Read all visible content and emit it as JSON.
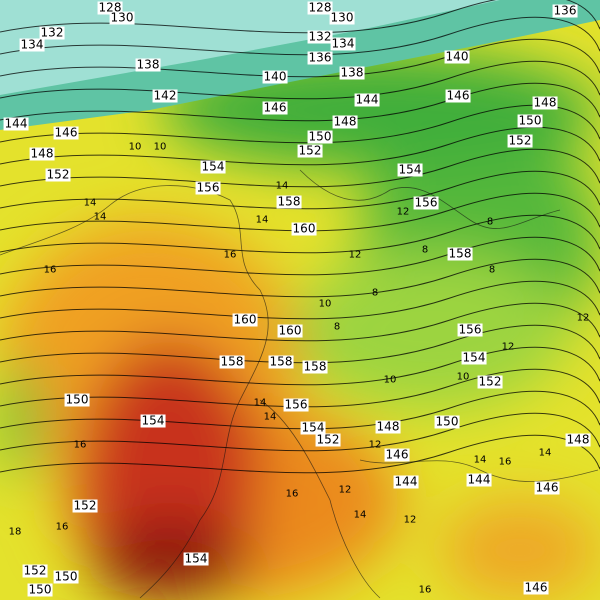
{
  "map": {
    "colors": {
      "polar": "#8fdcd0",
      "teal": "#4dbb99",
      "green": "#3fae3a",
      "lightgreen": "#8cd23a",
      "yellow": "#e6e62a",
      "orange": "#f0a020",
      "darkorange": "#e06a18",
      "red": "#c02a10",
      "darkred": "#8a1408"
    },
    "contour_labels": [
      "128",
      "130",
      "128",
      "130",
      "136",
      "132",
      "134",
      "132",
      "134",
      "136",
      "138",
      "138",
      "140",
      "140",
      "142",
      "144",
      "146",
      "146",
      "148",
      "144",
      "146",
      "148",
      "150",
      "150",
      "152",
      "148",
      "152",
      "152",
      "154",
      "154",
      "156",
      "156",
      "158",
      "160",
      "158",
      "160",
      "160",
      "156",
      "154",
      "158",
      "158",
      "158",
      "152",
      "150",
      "154",
      "156",
      "154",
      "152",
      "148",
      "150",
      "148",
      "146",
      "144",
      "144",
      "146",
      "152",
      "154",
      "152",
      "150",
      "150",
      "146"
    ],
    "temp_labels": [
      "14",
      "14",
      "16",
      "16",
      "14",
      "14",
      "10",
      "10",
      "8",
      "8",
      "8",
      "8",
      "8",
      "10",
      "10",
      "12",
      "12",
      "12",
      "12",
      "10",
      "14",
      "14",
      "16",
      "16",
      "12",
      "14",
      "12",
      "12",
      "14",
      "16",
      "14",
      "16",
      "18",
      "16"
    ]
  }
}
